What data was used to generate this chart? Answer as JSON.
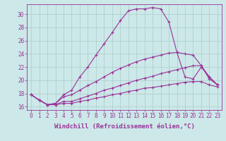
{
  "xlabel": "Windchill (Refroidissement éolien,°C)",
  "background_color": "#cce8e8",
  "grid_color": "#aacccc",
  "line_color": "#993399",
  "xlim": [
    -0.5,
    23.5
  ],
  "ylim": [
    15.5,
    31.5
  ],
  "xticks": [
    0,
    1,
    2,
    3,
    4,
    5,
    6,
    7,
    8,
    9,
    10,
    11,
    12,
    13,
    14,
    15,
    16,
    17,
    18,
    19,
    20,
    21,
    22,
    23
  ],
  "yticks": [
    16,
    18,
    20,
    22,
    24,
    26,
    28,
    30
  ],
  "line1_x": [
    0,
    1,
    2,
    3,
    4,
    5,
    6,
    7,
    8,
    9,
    10,
    11,
    12,
    13,
    14,
    15,
    16,
    17,
    18,
    19,
    20,
    21,
    22,
    23
  ],
  "line1_y": [
    17.8,
    17.0,
    16.3,
    16.5,
    17.8,
    18.5,
    20.5,
    22.0,
    23.8,
    25.5,
    27.2,
    29.0,
    30.5,
    30.8,
    30.8,
    31.0,
    30.8,
    28.8,
    24.2,
    20.5,
    20.2,
    22.0,
    20.5,
    19.3
  ],
  "line2_x": [
    0,
    1,
    2,
    3,
    4,
    5,
    6,
    7,
    8,
    9,
    10,
    11,
    12,
    13,
    14,
    15,
    16,
    17,
    18,
    19,
    20,
    21,
    22,
    23
  ],
  "line2_y": [
    17.8,
    17.0,
    16.3,
    16.5,
    17.5,
    17.8,
    18.5,
    19.2,
    19.8,
    20.5,
    21.2,
    21.8,
    22.3,
    22.8,
    23.2,
    23.5,
    23.8,
    24.1,
    24.2,
    24.0,
    23.8,
    22.2,
    20.2,
    19.3
  ],
  "line3_x": [
    0,
    1,
    2,
    3,
    4,
    5,
    6,
    7,
    8,
    9,
    10,
    11,
    12,
    13,
    14,
    15,
    16,
    17,
    18,
    19,
    20,
    21,
    22,
    23
  ],
  "line3_y": [
    17.8,
    17.0,
    16.3,
    16.3,
    16.8,
    16.8,
    17.2,
    17.6,
    18.0,
    18.5,
    18.8,
    19.2,
    19.6,
    20.0,
    20.3,
    20.6,
    21.0,
    21.3,
    21.6,
    21.9,
    22.2,
    22.2,
    20.5,
    19.3
  ],
  "line4_x": [
    0,
    1,
    2,
    3,
    4,
    5,
    6,
    7,
    8,
    9,
    10,
    11,
    12,
    13,
    14,
    15,
    16,
    17,
    18,
    19,
    20,
    21,
    22,
    23
  ],
  "line4_y": [
    17.8,
    17.0,
    16.3,
    16.3,
    16.5,
    16.5,
    16.8,
    17.0,
    17.3,
    17.5,
    17.8,
    18.0,
    18.3,
    18.5,
    18.8,
    18.9,
    19.1,
    19.3,
    19.5,
    19.7,
    19.8,
    19.8,
    19.3,
    19.0
  ],
  "xlabel_fontsize": 6.5,
  "tick_fontsize": 5.5
}
